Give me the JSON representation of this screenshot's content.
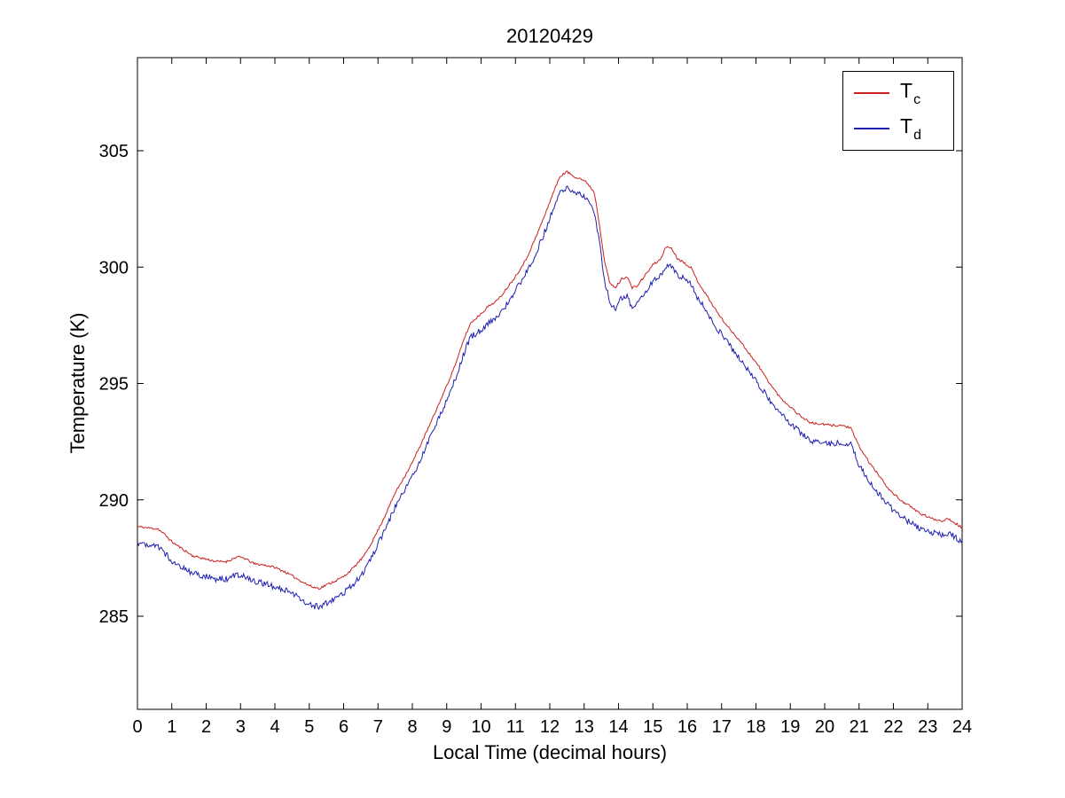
{
  "figure": {
    "background": "#ffffff",
    "frame_color": "#000000"
  },
  "chart_data": {
    "type": "line",
    "title": "20120429",
    "xlabel": "Local Time (decimal hours)",
    "ylabel": "Temperature (K)",
    "xlim": [
      0,
      24
    ],
    "ylim": [
      281,
      309
    ],
    "xticks": [
      0,
      1,
      2,
      3,
      4,
      5,
      6,
      7,
      8,
      9,
      10,
      11,
      12,
      13,
      14,
      15,
      16,
      17,
      18,
      19,
      20,
      21,
      22,
      23,
      24
    ],
    "yticks": [
      285,
      290,
      295,
      300,
      305
    ],
    "grid": false,
    "legend_position": "top-right",
    "axis_color": "#000000",
    "series": [
      {
        "label": "T_c",
        "name_main": "T",
        "name_sub": "c",
        "color": "#cc2020",
        "noise": 0.05,
        "seed": 11,
        "points": [
          [
            0,
            288.85
          ],
          [
            0.3,
            288.8
          ],
          [
            0.6,
            288.75
          ],
          [
            0.8,
            288.5
          ],
          [
            1,
            288.2
          ],
          [
            1.3,
            287.9
          ],
          [
            1.6,
            287.6
          ],
          [
            2,
            287.45
          ],
          [
            2.3,
            287.35
          ],
          [
            2.6,
            287.35
          ],
          [
            2.9,
            287.55
          ],
          [
            3.1,
            287.5
          ],
          [
            3.4,
            287.25
          ],
          [
            3.7,
            287.2
          ],
          [
            4,
            287.1
          ],
          [
            4.3,
            286.9
          ],
          [
            4.6,
            286.65
          ],
          [
            4.9,
            286.4
          ],
          [
            5.1,
            286.25
          ],
          [
            5.3,
            286.2
          ],
          [
            5.5,
            286.35
          ],
          [
            5.8,
            286.55
          ],
          [
            6,
            286.7
          ],
          [
            6.3,
            287.1
          ],
          [
            6.6,
            287.6
          ],
          [
            6.9,
            288.4
          ],
          [
            7.2,
            289.3
          ],
          [
            7.5,
            290.3
          ],
          [
            8,
            291.6
          ],
          [
            8.5,
            293.2
          ],
          [
            9,
            294.9
          ],
          [
            9.3,
            296.0
          ],
          [
            9.5,
            296.9
          ],
          [
            9.7,
            297.6
          ],
          [
            10,
            298.0
          ],
          [
            10.2,
            298.3
          ],
          [
            10.5,
            298.6
          ],
          [
            10.8,
            299.2
          ],
          [
            11,
            299.6
          ],
          [
            11.3,
            300.3
          ],
          [
            11.6,
            301.3
          ],
          [
            11.9,
            302.4
          ],
          [
            12.1,
            303.2
          ],
          [
            12.3,
            303.9
          ],
          [
            12.5,
            304.1
          ],
          [
            12.7,
            303.9
          ],
          [
            12.9,
            303.8
          ],
          [
            13.1,
            303.6
          ],
          [
            13.3,
            303.2
          ],
          [
            13.45,
            301.8
          ],
          [
            13.6,
            300.2
          ],
          [
            13.75,
            299.3
          ],
          [
            13.9,
            299.1
          ],
          [
            14.1,
            299.5
          ],
          [
            14.25,
            299.6
          ],
          [
            14.4,
            299.1
          ],
          [
            14.55,
            299.2
          ],
          [
            14.7,
            299.5
          ],
          [
            14.85,
            299.8
          ],
          [
            15,
            300.1
          ],
          [
            15.2,
            300.3
          ],
          [
            15.4,
            300.9
          ],
          [
            15.55,
            300.8
          ],
          [
            15.7,
            300.4
          ],
          [
            15.9,
            300.2
          ],
          [
            16.1,
            300.0
          ],
          [
            16.3,
            299.4
          ],
          [
            16.6,
            298.7
          ],
          [
            16.9,
            298.0
          ],
          [
            17.2,
            297.4
          ],
          [
            17.5,
            296.9
          ],
          [
            17.8,
            296.3
          ],
          [
            18.1,
            295.7
          ],
          [
            18.4,
            295.0
          ],
          [
            18.7,
            294.4
          ],
          [
            19,
            294.0
          ],
          [
            19.3,
            293.6
          ],
          [
            19.6,
            293.3
          ],
          [
            19.9,
            293.25
          ],
          [
            20.2,
            293.2
          ],
          [
            20.5,
            293.2
          ],
          [
            20.75,
            293.1
          ],
          [
            21,
            292.3
          ],
          [
            21.3,
            291.6
          ],
          [
            21.6,
            291.0
          ],
          [
            21.9,
            290.4
          ],
          [
            22.2,
            290.0
          ],
          [
            22.5,
            289.7
          ],
          [
            22.8,
            289.4
          ],
          [
            23.1,
            289.2
          ],
          [
            23.4,
            289.1
          ],
          [
            23.6,
            289.2
          ],
          [
            23.8,
            289.0
          ],
          [
            24,
            288.8
          ]
        ]
      },
      {
        "label": "T_d",
        "name_main": "T",
        "name_sub": "d",
        "color": "#2020b0",
        "noise": 0.13,
        "seed": 47,
        "points": [
          [
            0,
            288.15
          ],
          [
            0.3,
            288.1
          ],
          [
            0.6,
            288.0
          ],
          [
            0.8,
            287.7
          ],
          [
            1,
            287.4
          ],
          [
            1.3,
            287.1
          ],
          [
            1.6,
            286.85
          ],
          [
            2,
            286.7
          ],
          [
            2.3,
            286.6
          ],
          [
            2.6,
            286.6
          ],
          [
            2.9,
            286.8
          ],
          [
            3.1,
            286.75
          ],
          [
            3.4,
            286.5
          ],
          [
            3.7,
            286.4
          ],
          [
            4,
            286.25
          ],
          [
            4.3,
            286.1
          ],
          [
            4.6,
            285.9
          ],
          [
            4.9,
            285.6
          ],
          [
            5.1,
            285.45
          ],
          [
            5.3,
            285.4
          ],
          [
            5.5,
            285.55
          ],
          [
            5.8,
            285.8
          ],
          [
            6,
            286.0
          ],
          [
            6.3,
            286.4
          ],
          [
            6.6,
            286.95
          ],
          [
            6.9,
            287.8
          ],
          [
            7.2,
            288.7
          ],
          [
            7.5,
            289.7
          ],
          [
            8,
            291.0
          ],
          [
            8.5,
            292.6
          ],
          [
            9,
            294.3
          ],
          [
            9.3,
            295.4
          ],
          [
            9.5,
            296.3
          ],
          [
            9.7,
            297.0
          ],
          [
            10,
            297.3
          ],
          [
            10.2,
            297.6
          ],
          [
            10.5,
            297.9
          ],
          [
            10.8,
            298.5
          ],
          [
            11,
            299.0
          ],
          [
            11.3,
            299.7
          ],
          [
            11.6,
            300.6
          ],
          [
            11.9,
            301.7
          ],
          [
            12.1,
            302.5
          ],
          [
            12.3,
            303.2
          ],
          [
            12.5,
            303.4
          ],
          [
            12.7,
            303.2
          ],
          [
            12.9,
            303.1
          ],
          [
            13.1,
            302.9
          ],
          [
            13.3,
            302.4
          ],
          [
            13.45,
            301.0
          ],
          [
            13.6,
            299.4
          ],
          [
            13.75,
            298.5
          ],
          [
            13.9,
            298.2
          ],
          [
            14.1,
            298.7
          ],
          [
            14.25,
            298.8
          ],
          [
            14.4,
            298.2
          ],
          [
            14.55,
            298.4
          ],
          [
            14.7,
            298.8
          ],
          [
            14.85,
            299.1
          ],
          [
            15,
            299.4
          ],
          [
            15.2,
            299.6
          ],
          [
            15.4,
            300.1
          ],
          [
            15.55,
            300.0
          ],
          [
            15.7,
            299.7
          ],
          [
            15.9,
            299.5
          ],
          [
            16.1,
            299.3
          ],
          [
            16.3,
            298.7
          ],
          [
            16.6,
            298.0
          ],
          [
            16.9,
            297.3
          ],
          [
            17.2,
            296.7
          ],
          [
            17.5,
            296.1
          ],
          [
            17.8,
            295.5
          ],
          [
            18.1,
            294.9
          ],
          [
            18.4,
            294.3
          ],
          [
            18.7,
            293.7
          ],
          [
            19,
            293.3
          ],
          [
            19.3,
            292.9
          ],
          [
            19.6,
            292.55
          ],
          [
            19.9,
            292.45
          ],
          [
            20.2,
            292.4
          ],
          [
            20.5,
            292.45
          ],
          [
            20.75,
            292.4
          ],
          [
            21,
            291.5
          ],
          [
            21.3,
            290.8
          ],
          [
            21.6,
            290.2
          ],
          [
            21.9,
            289.7
          ],
          [
            22.2,
            289.3
          ],
          [
            22.5,
            289.0
          ],
          [
            22.8,
            288.75
          ],
          [
            23.1,
            288.6
          ],
          [
            23.4,
            288.5
          ],
          [
            23.6,
            288.55
          ],
          [
            23.8,
            288.4
          ],
          [
            24,
            288.2
          ]
        ]
      }
    ]
  }
}
